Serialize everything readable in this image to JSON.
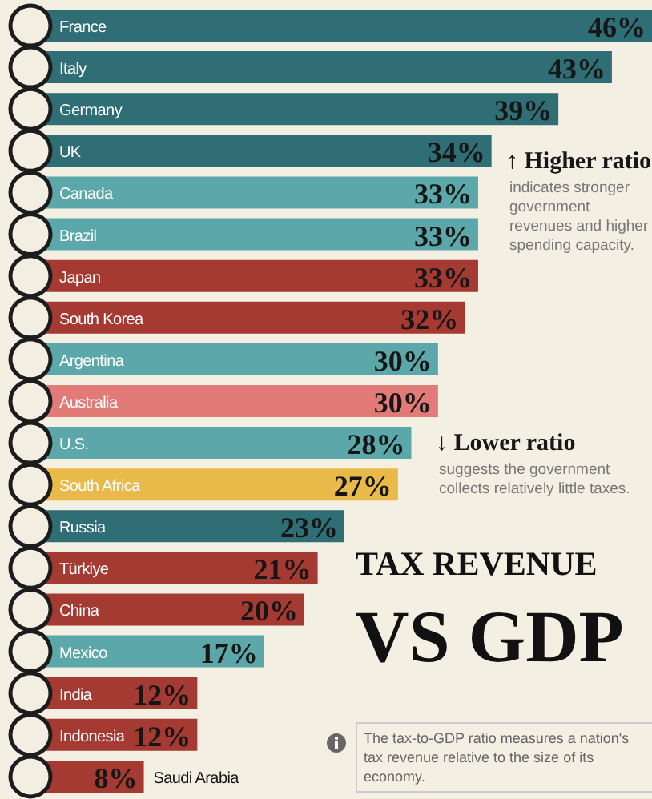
{
  "chart_data": {
    "type": "bar",
    "orientation": "horizontal",
    "title": "TAX REVENUE",
    "subtitle": "VS GDP",
    "categories": [
      "France",
      "Italy",
      "Germany",
      "UK",
      "Canada",
      "Brazil",
      "Japan",
      "South Korea",
      "Argentina",
      "Australia",
      "U.S.",
      "South Africa",
      "Russia",
      "Türkiye",
      "China",
      "Mexico",
      "India",
      "Indonesia",
      "Saudi Arabia"
    ],
    "values": [
      46,
      43,
      39,
      34,
      33,
      33,
      33,
      32,
      30,
      30,
      28,
      27,
      23,
      21,
      20,
      17,
      12,
      12,
      8
    ],
    "value_labels": [
      "46%",
      "43%",
      "39%",
      "34%",
      "33%",
      "33%",
      "33%",
      "32%",
      "30%",
      "30%",
      "28%",
      "27%",
      "23%",
      "21%",
      "20%",
      "17%",
      "12%",
      "12%",
      "8%"
    ],
    "colors": [
      "#2f6e75",
      "#2f6e75",
      "#2f6e75",
      "#2f6e75",
      "#5ba7a9",
      "#5ba7a9",
      "#a53a33",
      "#a53a33",
      "#5ba7a9",
      "#e27a78",
      "#5ba7a9",
      "#e9b949",
      "#2f6e75",
      "#a53a33",
      "#a53a33",
      "#5ba7a9",
      "#a53a33",
      "#a53a33",
      "#a53a33"
    ],
    "annotations": [
      "↑ Higher ratio",
      "indicates stronger government revenues and higher spending capacity.",
      "↓ Lower ratio",
      "suggests the government collects relatively little taxes.",
      "The tax-to-GDP ratio measures a nation's tax revenue relative to the size of its economy."
    ],
    "legend": false,
    "grid": false
  }
}
